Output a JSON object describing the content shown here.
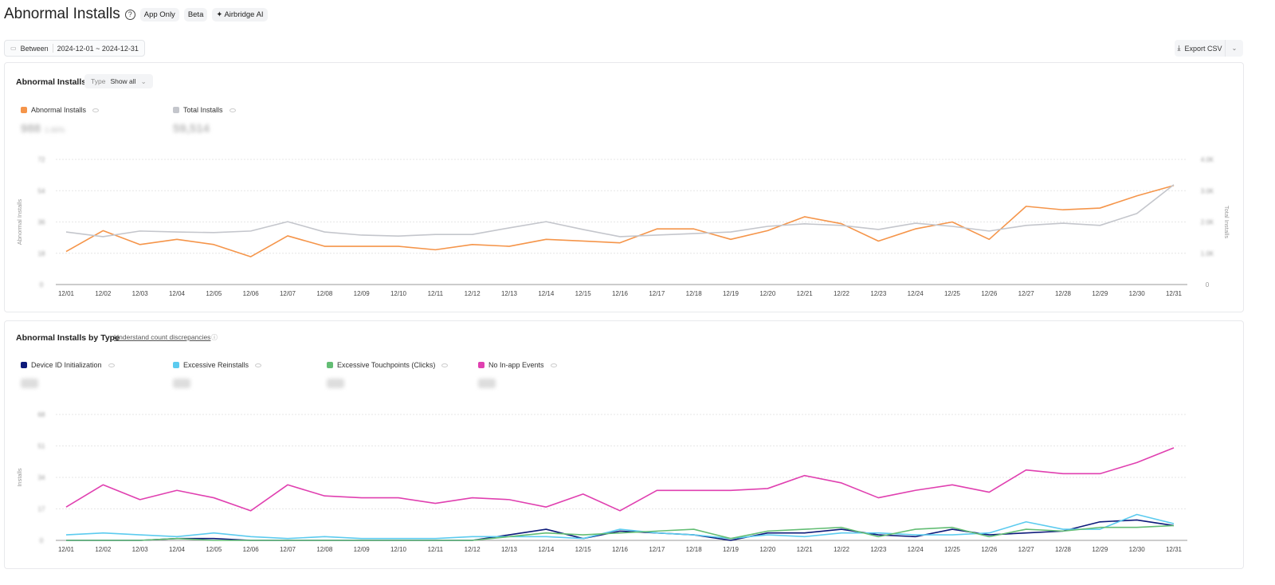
{
  "header": {
    "title": "Abnormal Installs",
    "help_icon": "question-circle-icon",
    "badges": [
      "App Only",
      "Beta",
      "Airbridge AI"
    ],
    "ai_icon": "sparkle-icon"
  },
  "date_filter": {
    "icon": "calendar-icon",
    "label": "Between",
    "value": "2024-12-01 ~ 2024-12-31"
  },
  "export": {
    "icon": "download-icon",
    "label": "Export CSV",
    "dropdown_icon": "chevron-down-icon"
  },
  "card1": {
    "title": "Abnormal Installs",
    "type_label": "Type",
    "type_value": "Show all",
    "legend": [
      {
        "label": "Abnormal Installs",
        "color": "#f5954a",
        "value": "988",
        "sub": "1.66%"
      },
      {
        "label": "Total Installs",
        "color": "#c4c6cc",
        "value": "59,514"
      }
    ]
  },
  "card2": {
    "title": "Abnormal Installs by Type",
    "link": "Understand count discrepancies",
    "legend": [
      {
        "label": "Device ID Initialization",
        "color": "#0d1a7a"
      },
      {
        "label": "Excessive Reinstalls",
        "color": "#5ccbef"
      },
      {
        "label": "Excessive Touchpoints (Clicks)",
        "color": "#63bd74"
      },
      {
        "label": "No In-app Events",
        "color": "#e040b0"
      }
    ]
  },
  "chart_data": [
    {
      "type": "line",
      "categories": [
        "12/01",
        "12/02",
        "12/03",
        "12/04",
        "12/05",
        "12/06",
        "12/07",
        "12/08",
        "12/09",
        "12/10",
        "12/11",
        "12/12",
        "12/13",
        "12/14",
        "12/15",
        "12/16",
        "12/17",
        "12/18",
        "12/19",
        "12/20",
        "12/21",
        "12/22",
        "12/23",
        "12/24",
        "12/25",
        "12/26",
        "12/27",
        "12/28",
        "12/29",
        "12/30",
        "12/31"
      ],
      "ylabel": "Abnormal Installs",
      "y2label": "Total Installs",
      "ylim": [
        0,
        72
      ],
      "yticks": [
        "0",
        "18",
        "36",
        "54",
        "72"
      ],
      "y2lim": [
        0,
        4000
      ],
      "y2ticks": [
        "0",
        "1.0K",
        "2.0K",
        "3.0K",
        "4.0K"
      ],
      "grid": true,
      "series": [
        {
          "name": "Abnormal Installs",
          "axis": "left",
          "color": "#f5954a",
          "values": [
            19,
            31,
            23,
            26,
            23,
            16,
            28,
            22,
            22,
            22,
            20,
            23,
            22,
            26,
            25,
            24,
            32,
            32,
            26,
            31,
            39,
            35,
            25,
            32,
            36,
            26,
            45,
            43,
            44,
            51,
            57
          ]
        },
        {
          "name": "Total Installs",
          "axis": "right",
          "color": "#c4c6cc",
          "values": [
            1680,
            1530,
            1710,
            1680,
            1660,
            1710,
            2010,
            1680,
            1580,
            1550,
            1600,
            1600,
            1810,
            2010,
            1760,
            1530,
            1580,
            1630,
            1680,
            1860,
            1940,
            1890,
            1760,
            1960,
            1860,
            1710,
            1890,
            1960,
            1890,
            2270,
            3190
          ]
        }
      ]
    },
    {
      "type": "line",
      "categories": [
        "12/01",
        "12/02",
        "12/03",
        "12/04",
        "12/05",
        "12/06",
        "12/07",
        "12/08",
        "12/09",
        "12/10",
        "12/11",
        "12/12",
        "12/13",
        "12/14",
        "12/15",
        "12/16",
        "12/17",
        "12/18",
        "12/19",
        "12/20",
        "12/21",
        "12/22",
        "12/23",
        "12/24",
        "12/25",
        "12/26",
        "12/27",
        "12/28",
        "12/29",
        "12/30",
        "12/31"
      ],
      "ylabel": "Installs",
      "ylim": [
        0,
        68
      ],
      "yticks": [
        "0",
        "17",
        "34",
        "51",
        "68"
      ],
      "grid": true,
      "series": [
        {
          "name": "Device ID Initialization",
          "color": "#0d1a7a",
          "values": [
            0,
            0,
            0,
            1,
            1,
            0,
            0,
            0,
            0,
            0,
            0,
            0,
            3,
            6,
            1,
            5,
            4,
            3,
            0,
            4,
            4,
            6,
            3,
            2,
            6,
            3,
            4,
            5,
            10,
            11,
            8
          ]
        },
        {
          "name": "Excessive Reinstalls",
          "color": "#5ccbef",
          "values": [
            3,
            4,
            3,
            2,
            4,
            2,
            1,
            2,
            1,
            1,
            1,
            2,
            2,
            2,
            1,
            6,
            4,
            3,
            1,
            3,
            2,
            4,
            4,
            3,
            3,
            4,
            10,
            6,
            6,
            14,
            9
          ]
        },
        {
          "name": "Excessive Touchpoints (Clicks)",
          "color": "#63bd74",
          "values": [
            0,
            0,
            0,
            1,
            0,
            0,
            0,
            0,
            0,
            0,
            0,
            0,
            2,
            4,
            3,
            4,
            5,
            6,
            1,
            5,
            6,
            7,
            2,
            6,
            7,
            2,
            6,
            5,
            7,
            7,
            8
          ]
        },
        {
          "name": "No In-app Events",
          "color": "#e040b0",
          "values": [
            18,
            30,
            22,
            27,
            23,
            16,
            30,
            24,
            23,
            23,
            20,
            23,
            22,
            18,
            25,
            16,
            27,
            27,
            27,
            28,
            35,
            31,
            23,
            27,
            30,
            26,
            38,
            36,
            36,
            42,
            50
          ]
        }
      ]
    }
  ]
}
